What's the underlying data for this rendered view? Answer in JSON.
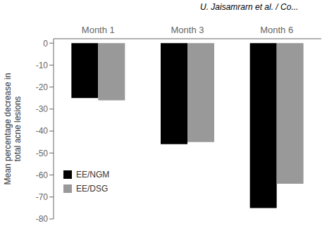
{
  "chart_data": {
    "type": "bar",
    "title": "U. Jaisamrarn et al. / Co...",
    "categories": [
      "Month 1",
      "Month 3",
      "Month 6"
    ],
    "series": [
      {
        "name": "EE/NGM",
        "color": "#000000",
        "values": [
          -25,
          -46,
          -75
        ]
      },
      {
        "name": "EE/DSG",
        "color": "#999999",
        "values": [
          -26,
          -45,
          -64
        ]
      }
    ],
    "ylabel": "Mean percentage decrease in\ntotal acne lesions",
    "ylim": [
      -80,
      2
    ],
    "yticks": [
      0,
      -10,
      -20,
      -30,
      -40,
      -50,
      -60,
      -70,
      -80
    ],
    "grid": false,
    "legend": "lower left"
  }
}
